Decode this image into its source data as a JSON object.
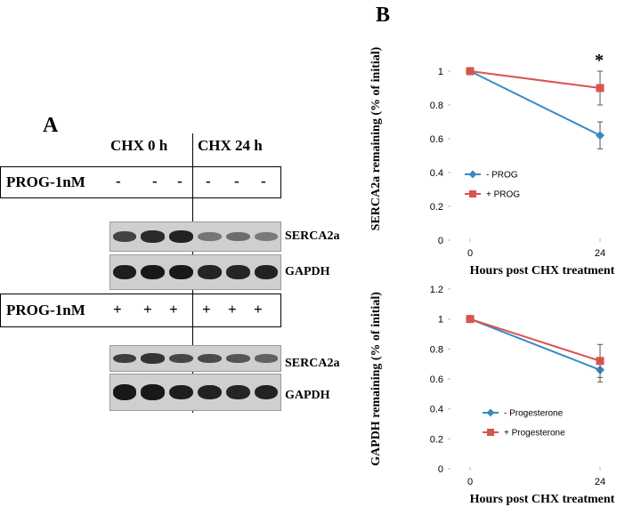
{
  "panel_a": {
    "letter": "A",
    "col_header_0h": "CHX 0 h",
    "col_header_24h": "CHX 24 h",
    "group1": {
      "label": "PROG-1nM",
      "signs": [
        "-",
        "-",
        "-",
        "-",
        "-",
        "-"
      ],
      "blots": [
        {
          "name": "SERCA2a",
          "intensities": [
            0.72,
            0.85,
            0.9,
            0.45,
            0.5,
            0.42
          ]
        },
        {
          "name": "GAPDH",
          "intensities": [
            0.92,
            0.95,
            0.95,
            0.88,
            0.88,
            0.9
          ]
        }
      ]
    },
    "group2": {
      "label": "PROG-1nM",
      "signs": [
        "+",
        "+",
        "+",
        "+",
        "+",
        "+"
      ],
      "blots": [
        {
          "name": "SERCA2a",
          "intensities": [
            0.75,
            0.8,
            0.7,
            0.68,
            0.62,
            0.55
          ]
        },
        {
          "name": "GAPDH",
          "intensities": [
            0.95,
            0.95,
            0.92,
            0.9,
            0.88,
            0.9
          ]
        }
      ]
    }
  },
  "panel_b": {
    "letter": "B"
  },
  "chart_data": [
    {
      "type": "line",
      "title": "",
      "x": [
        0,
        24
      ],
      "xlabel": "Hours post CHX treatment",
      "ylabel": "SERCA2a remaining (% of initial)",
      "ylim": [
        0,
        1.2
      ],
      "yticks": [
        "0",
        "0.2",
        "0.4",
        "0.6",
        "0.8",
        "1"
      ],
      "ytick_values": [
        0,
        0.2,
        0.4,
        0.6,
        0.8,
        1
      ],
      "xticks": [
        "0",
        "24"
      ],
      "legend_position": "center-left",
      "annotation": "*",
      "series": [
        {
          "name": "- PROG",
          "values": [
            1.0,
            0.62
          ],
          "errors": [
            0,
            0.08
          ],
          "color": "#3b8ac4",
          "marker": "diamond"
        },
        {
          "name": "+ PROG",
          "values": [
            1.0,
            0.9
          ],
          "errors": [
            0,
            0.1
          ],
          "color": "#d9534f",
          "marker": "square"
        }
      ]
    },
    {
      "type": "line",
      "title": "",
      "x": [
        0,
        24
      ],
      "xlabel": "Hours post CHX treatment",
      "ylabel": "GAPDH remaining (% of initial)",
      "ylim": [
        0,
        1.2
      ],
      "yticks": [
        "0",
        "0.2",
        "0.4",
        "0.6",
        "0.8",
        "1",
        "1.2"
      ],
      "ytick_values": [
        0,
        0.2,
        0.4,
        0.6,
        0.8,
        1,
        1.2
      ],
      "xticks": [
        "0",
        "24"
      ],
      "legend_position": "bottom-left",
      "series": [
        {
          "name": "- Progesterone",
          "values": [
            1.0,
            0.66
          ],
          "errors": [
            0,
            0.08
          ],
          "color": "#3b8ac4",
          "marker": "diamond"
        },
        {
          "name": "+ Progesterone",
          "values": [
            1.0,
            0.72
          ],
          "errors": [
            0,
            0.11
          ],
          "color": "#d9534f",
          "marker": "square"
        }
      ]
    }
  ]
}
